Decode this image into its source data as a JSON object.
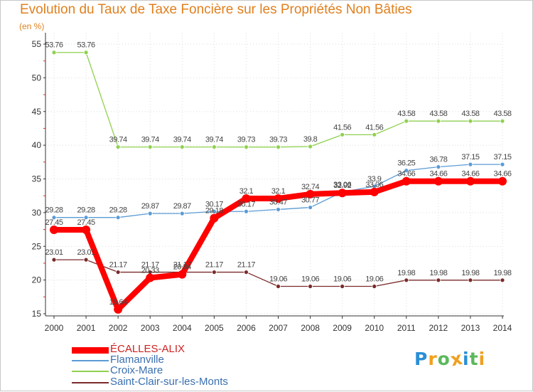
{
  "chart_data": {
    "type": "line",
    "title": "Evolution du Taux de Taxe Foncière sur les Propriétés Non Bâties",
    "ylabel": "(en %)",
    "xlabel": "",
    "ylim": [
      15,
      55
    ],
    "yticks": [
      15,
      20,
      25,
      30,
      35,
      40,
      45,
      50,
      55
    ],
    "categories": [
      "2000",
      "2001",
      "2002",
      "2003",
      "2004",
      "2005",
      "2006",
      "2007",
      "2008",
      "2009",
      "2010",
      "2011",
      "2012",
      "2013",
      "2014"
    ],
    "series": [
      {
        "name": "ÉCALLES-ALIX",
        "color": "#ff0000",
        "values": [
          27.45,
          27.45,
          15.64,
          20.33,
          20.84,
          29.18,
          32.1,
          32.1,
          32.74,
          32.92,
          33.06,
          34.66,
          34.66,
          34.66,
          34.66
        ],
        "labels": [
          "27.45",
          "27.45",
          "15.64",
          "20.33",
          "20.84",
          "29.18",
          "32.1",
          "32.1",
          "32.74",
          "32.92",
          "33.06",
          "34.66",
          "34.66",
          "34.66",
          "34.66"
        ]
      },
      {
        "name": "Flamanville",
        "color": "#5b9bd5",
        "values": [
          29.28,
          29.28,
          29.28,
          29.87,
          29.87,
          30.17,
          30.17,
          30.47,
          30.77,
          33.06,
          33.9,
          36.25,
          36.78,
          37.15,
          37.15
        ],
        "labels": [
          "29.28",
          "29.28",
          "29.28",
          "29.87",
          "29.87",
          "30.17",
          "30.17",
          "30.47",
          "30.77",
          "33.06",
          "33.9",
          "36.25",
          "36.78",
          "37.15",
          "37.15"
        ]
      },
      {
        "name": "Croix-Mare",
        "color": "#8fd14f",
        "values": [
          53.76,
          53.76,
          39.74,
          39.74,
          39.74,
          39.74,
          39.73,
          39.73,
          39.8,
          41.56,
          41.56,
          43.58,
          43.58,
          43.58,
          43.58
        ],
        "labels": [
          "53.76",
          "53.76",
          "39.74",
          "39.74",
          "39.74",
          "39.74",
          "39.73",
          "39.73",
          "39.8",
          "41.56",
          "41.56",
          "43.58",
          "43.58",
          "43.58",
          "43.58"
        ]
      },
      {
        "name": "Saint-Clair-sur-les-Monts",
        "color": "#7a2a2a",
        "values": [
          23.01,
          23.01,
          21.17,
          21.17,
          21.17,
          21.17,
          21.17,
          19.06,
          19.06,
          19.06,
          19.06,
          19.98,
          19.98,
          19.98,
          19.98
        ],
        "labels": [
          "23.01",
          "23.01",
          "21.17",
          "21.17",
          "21.17",
          "21.17",
          "21.17",
          "19.06",
          "19.06",
          "19.06",
          "19.06",
          "19.98",
          "19.98",
          "19.98",
          "19.98"
        ]
      }
    ]
  },
  "logo": {
    "letters": [
      "P",
      "r",
      "o",
      "x",
      "i",
      "t",
      "i"
    ],
    "colors": [
      "#2a8fd6",
      "#f0a020",
      "#5cb85c",
      "#f0a020",
      "#2a8fd6",
      "#5cb85c",
      "#f0a020"
    ]
  }
}
